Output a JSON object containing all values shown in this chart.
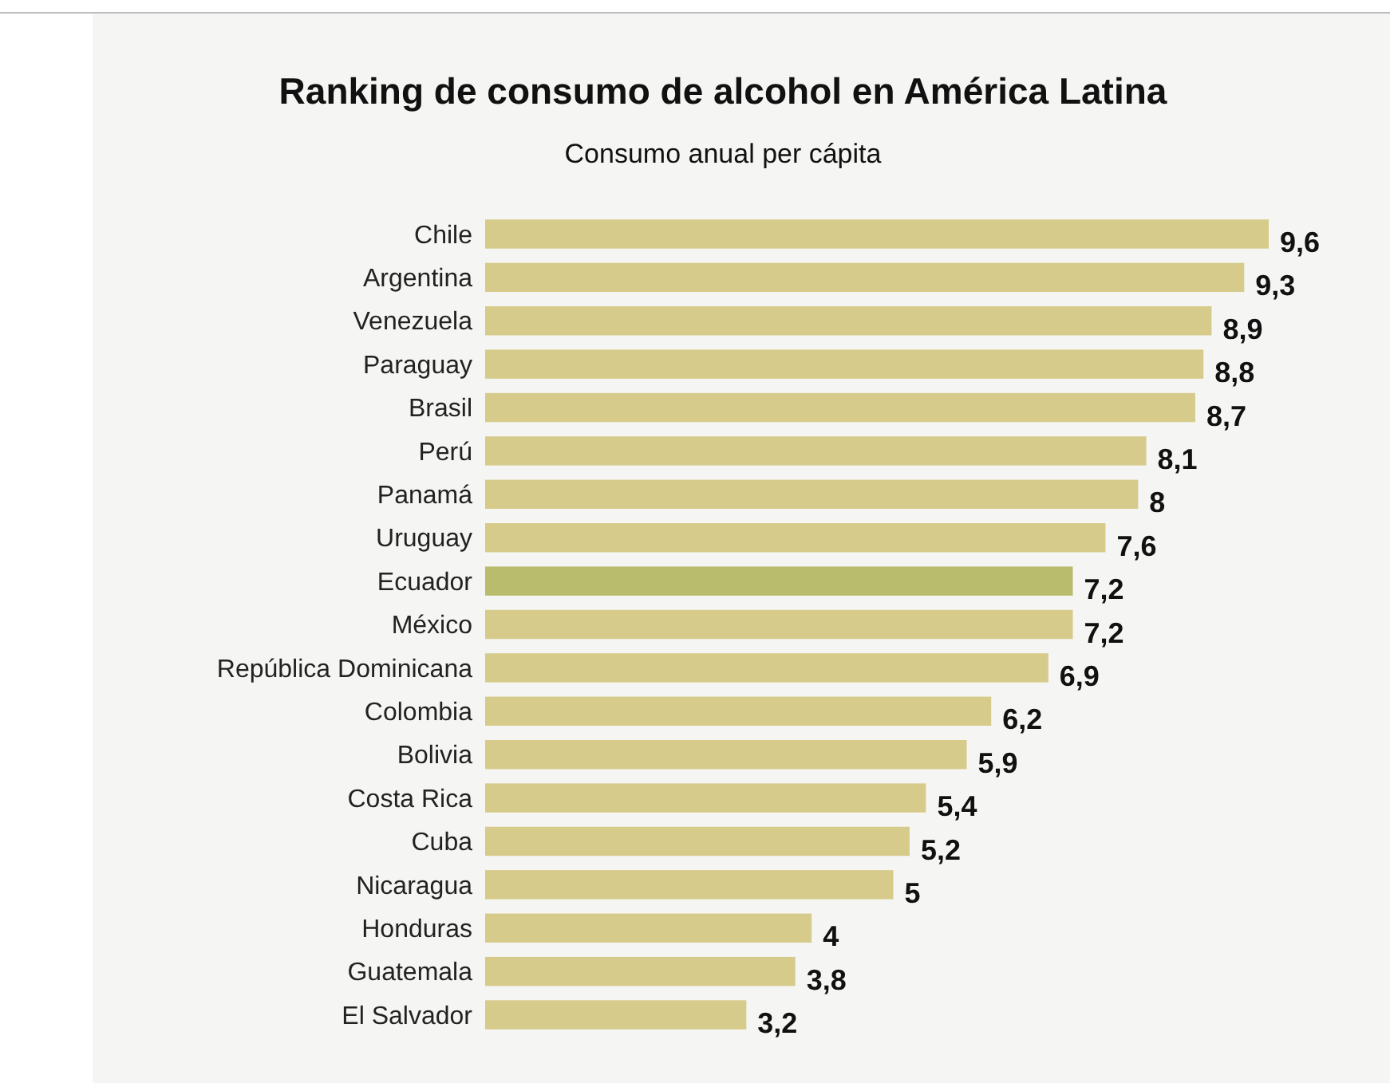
{
  "chart_data": {
    "type": "bar",
    "orientation": "horizontal",
    "title": "Ranking de consumo de alcohol en América Latina",
    "subtitle": "Consumo anual per cápita",
    "categories": [
      "Chile",
      "Argentina",
      "Venezuela",
      "Paraguay",
      "Brasil",
      "Perú",
      "Panamá",
      "Uruguay",
      "Ecuador",
      "México",
      "República Dominicana",
      "Colombia",
      "Bolivia",
      "Costa Rica",
      "Cuba",
      "Nicaragua",
      "Honduras",
      "Guatemala",
      "El Salvador"
    ],
    "values": [
      9.6,
      9.3,
      8.9,
      8.8,
      8.7,
      8.1,
      8,
      7.6,
      7.2,
      7.2,
      6.9,
      6.2,
      5.9,
      5.4,
      5.2,
      5,
      4,
      3.8,
      3.2
    ],
    "colors": [
      "#d6cb8a",
      "#d6cb8a",
      "#d6cb8a",
      "#d6cb8a",
      "#d6cb8a",
      "#d6cb8a",
      "#d6cb8a",
      "#d6cb8a",
      "#b9bc6c",
      "#d6cb8a",
      "#d6cb8a",
      "#d6cb8a",
      "#d6cb8a",
      "#d6cb8a",
      "#d6cb8a",
      "#d6cb8a",
      "#d6cb8a",
      "#d6cb8a",
      "#d6cb8a"
    ],
    "value_labels": [
      "9,6",
      "9,3",
      "8,9",
      "8,8",
      "8,7",
      "8,1",
      "8",
      "7,6",
      "7,2",
      "7,2",
      "6,9",
      "6,2",
      "5,9",
      "5,4",
      "5,2",
      "5",
      "4",
      "3,8",
      "3,2"
    ],
    "xlim": [
      0,
      9.6
    ],
    "tick_labels": "y"
  }
}
